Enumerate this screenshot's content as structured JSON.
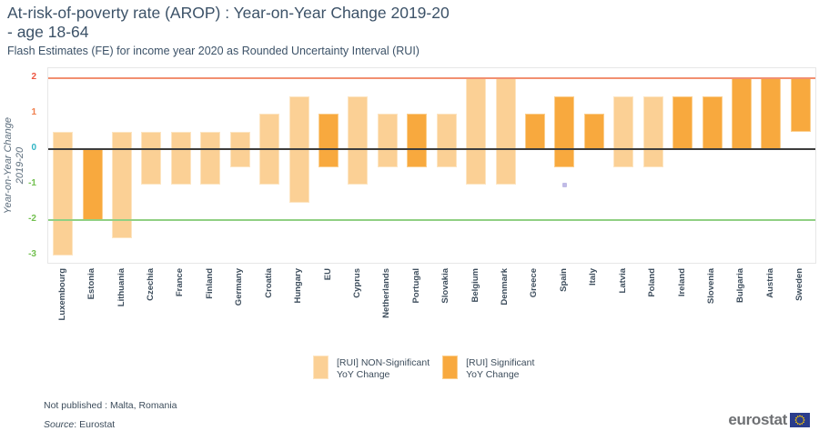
{
  "chart_data": {
    "type": "bar",
    "subtype": "floating-range-bars",
    "title_lines": [
      "At-risk-of-poverty rate (AROP) : Year-on-Year Change 2019-20",
      "- age 18-64"
    ],
    "subtitle": "Flash Estimates (FE) for income year 2020 as Rounded Uncertainty Interval (RUI)",
    "ylabel_lines": [
      "Year-on-Year Change",
      "2019-20"
    ],
    "ylim": [
      -3.3,
      2.3
    ],
    "grid": false,
    "yticks": [
      {
        "value": 2,
        "color": "#ee5540"
      },
      {
        "value": 1,
        "color": "#f07d4a"
      },
      {
        "value": 0,
        "color": "#2fb4c4"
      },
      {
        "value": -1,
        "color": "#72c04f"
      },
      {
        "value": -2,
        "color": "#72c04f"
      },
      {
        "value": -3,
        "color": "#72c04f"
      }
    ],
    "reference_lines": [
      {
        "value": 2,
        "color": "#f29070"
      },
      {
        "value": 0,
        "color": "#3c3c3c"
      },
      {
        "value": -2,
        "color": "#90d083"
      }
    ],
    "categories": [
      "Luxembourg",
      "Estonia",
      "Lithuania",
      "Czechia",
      "France",
      "Finland",
      "Germany",
      "Croatia",
      "Hungary",
      "EU",
      "Cyprus",
      "Netherlands",
      "Portugal",
      "Slovakia",
      "Belgium",
      "Denmark",
      "Greece",
      "Spain",
      "Italy",
      "Latvia",
      "Poland",
      "Ireland",
      "Slovenia",
      "Bulgaria",
      "Austria",
      "Sweden"
    ],
    "bars": [
      {
        "country": "Luxembourg",
        "low": -3.0,
        "high": 0.5,
        "significant": false
      },
      {
        "country": "Estonia",
        "low": -2.0,
        "high": 0.0,
        "significant": true
      },
      {
        "country": "Lithuania",
        "low": -2.5,
        "high": 0.5,
        "significant": false
      },
      {
        "country": "Czechia",
        "low": -1.0,
        "high": 0.5,
        "significant": false
      },
      {
        "country": "France",
        "low": -1.0,
        "high": 0.5,
        "significant": false
      },
      {
        "country": "Finland",
        "low": -1.0,
        "high": 0.5,
        "significant": false
      },
      {
        "country": "Germany",
        "low": -0.5,
        "high": 0.5,
        "significant": false
      },
      {
        "country": "Croatia",
        "low": -1.0,
        "high": 1.0,
        "significant": false
      },
      {
        "country": "Hungary",
        "low": -1.5,
        "high": 1.5,
        "significant": false
      },
      {
        "country": "EU",
        "low": -0.5,
        "high": 1.0,
        "significant": true
      },
      {
        "country": "Cyprus",
        "low": -1.0,
        "high": 1.5,
        "significant": false
      },
      {
        "country": "Netherlands",
        "low": -0.5,
        "high": 1.0,
        "significant": false
      },
      {
        "country": "Portugal",
        "low": -0.5,
        "high": 1.0,
        "significant": true
      },
      {
        "country": "Slovakia",
        "low": -0.5,
        "high": 1.0,
        "significant": false
      },
      {
        "country": "Belgium",
        "low": -1.0,
        "high": 2.0,
        "significant": false
      },
      {
        "country": "Denmark",
        "low": -1.0,
        "high": 2.0,
        "significant": false
      },
      {
        "country": "Greece",
        "low": 0.0,
        "high": 1.0,
        "significant": true
      },
      {
        "country": "Spain",
        "low": -0.5,
        "high": 1.5,
        "significant": true
      },
      {
        "country": "Italy",
        "low": 0.0,
        "high": 1.0,
        "significant": true
      },
      {
        "country": "Latvia",
        "low": -0.5,
        "high": 1.5,
        "significant": false
      },
      {
        "country": "Poland",
        "low": -0.5,
        "high": 1.5,
        "significant": false
      },
      {
        "country": "Ireland",
        "low": 0.0,
        "high": 1.5,
        "significant": true
      },
      {
        "country": "Slovenia",
        "low": 0.0,
        "high": 1.5,
        "significant": true
      },
      {
        "country": "Bulgaria",
        "low": 0.0,
        "high": 2.0,
        "significant": true
      },
      {
        "country": "Austria",
        "low": 0.0,
        "high": 2.0,
        "significant": true
      },
      {
        "country": "Sweden",
        "low": 0.5,
        "high": 2.0,
        "significant": true
      }
    ],
    "annotations": [
      {
        "type": "marker",
        "country": "Spain",
        "value": -1.0,
        "color": "#aba4de"
      }
    ],
    "colors": {
      "non_significant": "#fbd095",
      "non_significant_border": "#fde5c2",
      "significant": "#f8a93e",
      "significant_border": "#fbce8d"
    },
    "legend": [
      {
        "lines": [
          "[RUI] NON-Significant",
          "YoY Change"
        ],
        "significant": false
      },
      {
        "lines": [
          "[RUI] Significant",
          "YoY Change"
        ],
        "significant": true
      }
    ],
    "legend_position": "bottom-center"
  },
  "footer": {
    "not_published": "Not published : Malta, Romania",
    "source_prefix": "Source",
    "source_suffix": ": Eurostat",
    "logo_text": "eurostat"
  }
}
